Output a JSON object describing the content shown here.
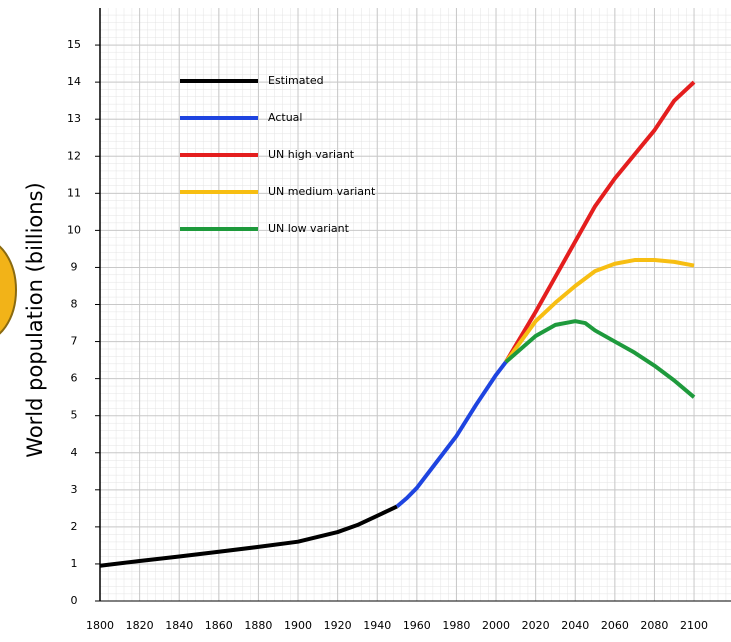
{
  "chart_data": {
    "type": "line",
    "y_label": "World population (billions)",
    "xlim": [
      1800,
      2117
    ],
    "ylim": [
      0,
      16
    ],
    "xticks": [
      1800,
      1820,
      1840,
      1860,
      1880,
      1900,
      1920,
      1940,
      1960,
      1980,
      2000,
      2020,
      2040,
      2060,
      2080,
      2100
    ],
    "yticks": [
      0,
      1,
      2,
      3,
      4,
      5,
      6,
      7,
      8,
      9,
      10,
      11,
      12,
      13,
      14,
      15
    ],
    "grid": true,
    "series": [
      {
        "name": "Estimated",
        "color": "#000000",
        "x": [
          1800,
          1820,
          1840,
          1860,
          1880,
          1900,
          1920,
          1930,
          1940,
          1950
        ],
        "values": [
          0.95,
          1.08,
          1.2,
          1.33,
          1.46,
          1.6,
          1.86,
          2.05,
          2.3,
          2.55
        ]
      },
      {
        "name": "Actual",
        "color": "#1e44e0",
        "x": [
          1950,
          1955,
          1960,
          1970,
          1980,
          1990,
          2000,
          2005
        ],
        "values": [
          2.55,
          2.78,
          3.05,
          3.75,
          4.45,
          5.3,
          6.1,
          6.45
        ]
      },
      {
        "name": "UN high variant",
        "color": "#e41e1e",
        "x": [
          2005,
          2020,
          2030,
          2040,
          2050,
          2060,
          2070,
          2080,
          2090,
          2100
        ],
        "values": [
          6.45,
          7.8,
          8.75,
          9.7,
          10.65,
          11.4,
          12.05,
          12.7,
          13.5,
          14.0
        ]
      },
      {
        "name": "UN medium variant",
        "color": "#f7be12",
        "x": [
          2005,
          2020,
          2030,
          2040,
          2050,
          2060,
          2070,
          2080,
          2090,
          2100
        ],
        "values": [
          6.45,
          7.55,
          8.05,
          8.5,
          8.9,
          9.1,
          9.2,
          9.2,
          9.15,
          9.05
        ]
      },
      {
        "name": "UN low variant",
        "color": "#1e9a3c",
        "x": [
          2005,
          2020,
          2030,
          2040,
          2045,
          2050,
          2060,
          2070,
          2080,
          2090,
          2100
        ],
        "values": [
          6.45,
          7.15,
          7.45,
          7.55,
          7.5,
          7.3,
          7.0,
          6.7,
          6.35,
          5.95,
          5.5
        ]
      }
    ]
  }
}
